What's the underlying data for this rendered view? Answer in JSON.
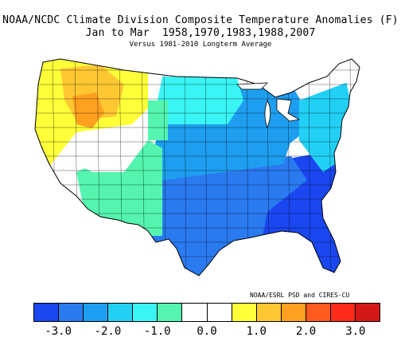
{
  "title": {
    "line1": "NOAA/NCDC Climate Division Composite Temperature Anomalies (F)",
    "line2": "Jan to Mar  1958,1970,1983,1988,2007",
    "line3": "Versus 1981-2010 Longterm Average"
  },
  "credit": "NOAA/ESRL PSD and CIRES-CU",
  "legend": {
    "colors": [
      "#1a47f0",
      "#2a7af0",
      "#1e9ef0",
      "#22d0f5",
      "#3af5f5",
      "#55f5b0",
      "#ffffff",
      "#ffffff",
      "#ffff3a",
      "#ffc833",
      "#ffa020",
      "#ff5a20",
      "#ff2a1a",
      "#d41818"
    ],
    "tick_labels": [
      "-3.0",
      "-2.0",
      "-1.0",
      "0.0",
      "1.0",
      "2.0",
      "3.0"
    ]
  },
  "map": {
    "regions": [
      {
        "name": "northwest",
        "color": "#ffff3a"
      },
      {
        "name": "idaho-wyoming",
        "color": "#ffc833"
      },
      {
        "name": "snake-river",
        "color": "#ffa020"
      },
      {
        "name": "great-basin",
        "color": "#ffffff"
      },
      {
        "name": "southwest",
        "color": "#55f5b0"
      },
      {
        "name": "northern-plains",
        "color": "#3af5f5"
      },
      {
        "name": "central-plains",
        "color": "#1e9ef0"
      },
      {
        "name": "south-central",
        "color": "#2a7af0"
      },
      {
        "name": "southeast",
        "color": "#1a47f0"
      },
      {
        "name": "great-lakes",
        "color": "#1e9ef0"
      },
      {
        "name": "northeast",
        "color": "#22d0f5"
      },
      {
        "name": "new-england",
        "color": "#ffffff"
      }
    ]
  }
}
